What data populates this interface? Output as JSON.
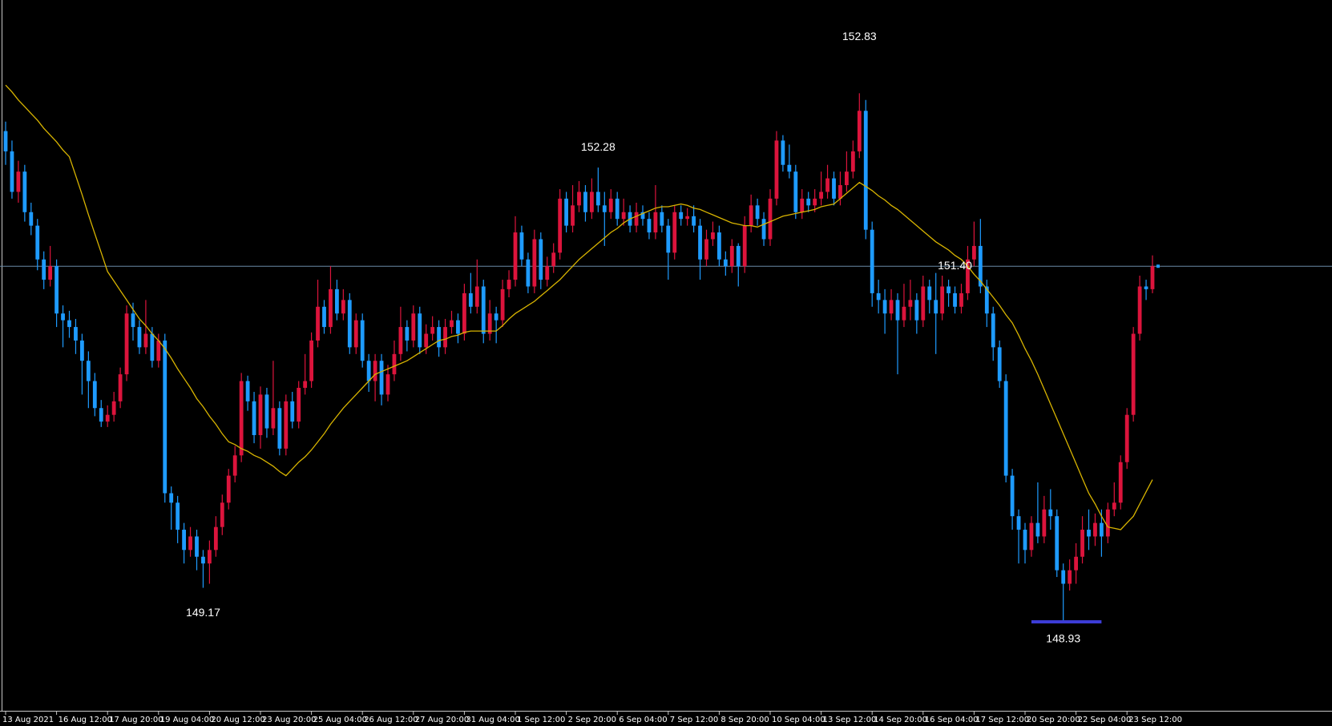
{
  "chart_data": {
    "type": "candlestick",
    "categories": [
      "13 Aug 2021",
      null,
      null,
      null,
      null,
      null,
      null,
      null,
      "16 Aug 12:00",
      null,
      null,
      null,
      null,
      null,
      null,
      null,
      "17 Aug 20:00",
      null,
      null,
      null,
      null,
      null,
      null,
      null,
      "19 Aug 04:00",
      null,
      null,
      null,
      null,
      null,
      null,
      null,
      "20 Aug 12:00",
      null,
      null,
      null,
      null,
      null,
      null,
      null,
      "23 Aug 20:00",
      null,
      null,
      null,
      null,
      null,
      null,
      null,
      "25 Aug 04:00",
      null,
      null,
      null,
      null,
      null,
      null,
      null,
      "26 Aug 12:00",
      null,
      null,
      null,
      null,
      null,
      null,
      null,
      "27 Aug 20:00",
      null,
      null,
      null,
      null,
      null,
      null,
      null,
      "31 Aug 04:00",
      null,
      null,
      null,
      null,
      null,
      null,
      null,
      "1 Sep 12:00",
      null,
      null,
      null,
      null,
      null,
      null,
      null,
      "2 Sep 20:00",
      null,
      null,
      null,
      null,
      null,
      null,
      null,
      "6 Sep 04:00",
      null,
      null,
      null,
      null,
      null,
      null,
      null,
      "7 Sep 12:00",
      null,
      null,
      null,
      null,
      null,
      null,
      null,
      "8 Sep 20:00",
      null,
      null,
      null,
      null,
      null,
      null,
      null,
      "10 Sep 04:00",
      null,
      null,
      null,
      null,
      null,
      null,
      null,
      "13 Sep 12:00",
      null,
      null,
      null,
      null,
      null,
      null,
      null,
      "14 Sep 20:00",
      null,
      null,
      null,
      null,
      null,
      null,
      null,
      "16 Sep 04:00",
      null,
      null,
      null,
      null,
      null,
      null,
      null,
      "17 Sep 12:00",
      null,
      null,
      null,
      null,
      null,
      null,
      null,
      "20 Sep 20:00",
      null,
      null,
      null,
      null,
      null,
      null,
      null,
      "22 Sep 04:00",
      null,
      null,
      null,
      null,
      null,
      null,
      null,
      "23 Sep 12:00",
      null,
      null,
      null,
      null
    ],
    "open": [
      152.55,
      152.4,
      152.1,
      152.25,
      151.95,
      151.85,
      151.6,
      151.45,
      151.55,
      151.2,
      151.15,
      151.1,
      151.0,
      150.85,
      150.7,
      150.5,
      150.4,
      150.45,
      150.55,
      150.75,
      151.2,
      151.1,
      150.95,
      151.05,
      150.85,
      151.0,
      149.87,
      149.8,
      149.6,
      149.45,
      149.55,
      149.4,
      149.35,
      149.45,
      149.62,
      149.8,
      150.0,
      150.15,
      150.7,
      150.55,
      150.3,
      150.6,
      150.35,
      150.5,
      150.2,
      150.55,
      150.4,
      150.65,
      150.7,
      151.0,
      151.25,
      151.1,
      151.38,
      151.2,
      151.3,
      150.95,
      151.15,
      150.85,
      150.7,
      150.85,
      150.6,
      150.75,
      150.9,
      151.1,
      151.0,
      151.2,
      150.95,
      151.05,
      151.1,
      150.95,
      151.1,
      151.15,
      151.05,
      151.35,
      151.25,
      151.4,
      151.05,
      151.2,
      151.15,
      151.38,
      151.45,
      151.8,
      151.6,
      151.4,
      151.75,
      151.45,
      151.55,
      151.65,
      152.05,
      151.85,
      152.0,
      152.1,
      151.95,
      152.1,
      152.0,
      151.95,
      152.05,
      151.9,
      151.95,
      151.85,
      151.95,
      151.9,
      151.8,
      151.95,
      151.85,
      151.65,
      151.95,
      151.9,
      151.92,
      151.85,
      151.6,
      151.75,
      151.8,
      151.6,
      151.55,
      151.7,
      151.55,
      151.85,
      152.0,
      151.9,
      151.75,
      152.05,
      152.48,
      152.3,
      152.25,
      151.95,
      152.05,
      152.0,
      152.05,
      152.1,
      152.2,
      152.05,
      152.15,
      152.25,
      152.4,
      152.7,
      151.82,
      151.35,
      151.3,
      151.2,
      151.3,
      151.15,
      151.25,
      151.3,
      151.15,
      151.4,
      151.3,
      151.2,
      151.4,
      151.35,
      151.25,
      151.35,
      151.6,
      151.7,
      151.4,
      151.2,
      150.95,
      150.7,
      150.0,
      149.7,
      149.6,
      149.45,
      149.65,
      149.55,
      149.75,
      149.7,
      149.3,
      149.2,
      149.3,
      149.4,
      149.6,
      149.55,
      149.65,
      149.55,
      149.75,
      149.8,
      150.1,
      150.45,
      151.05,
      151.4,
      151.38
    ],
    "high": [
      152.62,
      152.48,
      152.33,
      152.3,
      152.02,
      151.9,
      151.66,
      151.7,
      151.6,
      151.26,
      151.22,
      151.16,
      151.05,
      150.92,
      150.76,
      150.56,
      150.52,
      150.62,
      150.8,
      151.26,
      151.28,
      151.15,
      151.3,
      151.1,
      151.05,
      151.05,
      149.92,
      149.85,
      149.65,
      149.62,
      149.6,
      149.45,
      149.52,
      149.7,
      149.86,
      150.05,
      150.22,
      150.76,
      150.74,
      150.62,
      150.66,
      150.65,
      150.85,
      150.55,
      150.6,
      150.62,
      150.7,
      150.9,
      151.06,
      151.45,
      151.3,
      151.55,
      151.45,
      151.38,
      151.35,
      151.2,
      151.2,
      150.9,
      150.9,
      150.9,
      150.82,
      151.0,
      151.25,
      151.15,
      151.26,
      151.25,
      151.12,
      151.18,
      151.15,
      151.16,
      151.22,
      151.2,
      151.42,
      151.5,
      151.6,
      151.45,
      151.3,
      151.25,
      151.45,
      151.52,
      151.92,
      151.85,
      151.65,
      151.82,
      151.8,
      151.62,
      151.72,
      152.12,
      152.1,
      152.15,
      152.18,
      152.15,
      152.2,
      152.28,
      152.1,
      152.12,
      152.1,
      152.05,
      152.0,
      152.02,
      152.0,
      151.95,
      152.15,
      152.0,
      151.9,
      152.0,
      152.0,
      151.98,
      152.0,
      151.9,
      151.82,
      151.88,
      151.85,
      151.66,
      151.75,
      151.72,
      151.92,
      152.08,
      152.05,
      151.95,
      152.12,
      152.55,
      152.52,
      152.45,
      152.3,
      152.12,
      152.1,
      152.12,
      152.25,
      152.3,
      152.25,
      152.25,
      152.4,
      152.48,
      152.83,
      152.78,
      151.88,
      151.45,
      151.38,
      151.38,
      151.35,
      151.42,
      151.45,
      151.35,
      151.48,
      151.45,
      151.5,
      151.48,
      151.45,
      151.4,
      151.42,
      151.7,
      151.88,
      151.9,
      151.45,
      151.25,
      151.0,
      150.75,
      150.05,
      149.75,
      149.65,
      149.7,
      149.95,
      149.85,
      149.9,
      149.75,
      149.35,
      149.38,
      149.5,
      149.7,
      149.75,
      149.72,
      149.75,
      149.8,
      149.95,
      150.15,
      150.5,
      151.1,
      151.48,
      151.45,
      151.63
    ],
    "low": [
      152.3,
      152.05,
      152.02,
      151.88,
      151.78,
      151.52,
      151.38,
      151.4,
      151.1,
      150.95,
      151.02,
      150.9,
      150.6,
      150.5,
      150.44,
      150.36,
      150.36,
      150.4,
      150.5,
      150.7,
      151.0,
      150.9,
      150.9,
      150.8,
      150.8,
      149.8,
      149.6,
      149.5,
      149.35,
      149.4,
      149.3,
      149.17,
      149.2,
      149.4,
      149.56,
      149.75,
      149.95,
      150.1,
      150.48,
      150.24,
      150.2,
      150.28,
      150.3,
      150.15,
      150.15,
      150.35,
      150.35,
      150.6,
      150.65,
      150.95,
      151.05,
      151.05,
      151.15,
      151.15,
      150.9,
      150.9,
      150.8,
      150.62,
      150.55,
      150.52,
      150.55,
      150.7,
      150.85,
      150.92,
      150.95,
      150.9,
      150.9,
      151.0,
      150.88,
      150.9,
      151.05,
      150.98,
      151.0,
      151.2,
      151.2,
      150.98,
      151.0,
      150.98,
      151.1,
      151.32,
      151.4,
      151.55,
      151.35,
      151.35,
      151.38,
      151.4,
      151.5,
      151.6,
      151.8,
      151.8,
      151.95,
      151.88,
      151.9,
      151.95,
      151.7,
      151.9,
      151.85,
      151.85,
      151.8,
      151.8,
      151.85,
      151.75,
      151.75,
      151.8,
      151.45,
      151.6,
      151.85,
      151.85,
      151.8,
      151.45,
      151.55,
      151.7,
      151.55,
      151.48,
      151.5,
      151.4,
      151.5,
      151.8,
      151.85,
      151.7,
      151.7,
      152.0,
      152.25,
      152.2,
      151.9,
      151.9,
      151.95,
      151.95,
      152.0,
      152.05,
      152.0,
      152.0,
      152.1,
      152.2,
      152.35,
      151.75,
      151.25,
      151.2,
      151.05,
      151.15,
      150.75,
      151.1,
      151.15,
      151.05,
      151.1,
      151.2,
      150.9,
      151.15,
      151.25,
      151.2,
      151.2,
      151.3,
      151.55,
      151.35,
      151.1,
      150.85,
      150.65,
      149.95,
      149.6,
      149.35,
      149.35,
      149.4,
      149.5,
      149.5,
      149.6,
      149.25,
      148.93,
      149.15,
      149.2,
      149.35,
      149.45,
      149.48,
      149.4,
      149.5,
      149.7,
      149.75,
      150.05,
      150.4,
      151.0,
      151.3,
      151.35
    ],
    "close": [
      152.4,
      152.1,
      152.25,
      151.95,
      151.85,
      151.6,
      151.45,
      151.55,
      151.2,
      151.15,
      151.1,
      151.0,
      150.85,
      150.7,
      150.5,
      150.4,
      150.45,
      150.55,
      150.75,
      151.2,
      151.1,
      150.95,
      151.05,
      150.85,
      151.0,
      149.87,
      149.8,
      149.6,
      149.45,
      149.55,
      149.4,
      149.35,
      149.45,
      149.62,
      149.8,
      150.0,
      150.15,
      150.7,
      150.55,
      150.3,
      150.6,
      150.35,
      150.5,
      150.2,
      150.55,
      150.4,
      150.65,
      150.7,
      151.0,
      151.25,
      151.1,
      151.38,
      151.2,
      151.3,
      150.95,
      151.15,
      150.85,
      150.7,
      150.85,
      150.6,
      150.75,
      150.9,
      151.1,
      151.0,
      151.2,
      150.95,
      151.05,
      151.1,
      150.95,
      151.1,
      151.15,
      151.05,
      151.35,
      151.25,
      151.4,
      151.05,
      151.2,
      151.15,
      151.38,
      151.45,
      151.8,
      151.6,
      151.4,
      151.75,
      151.45,
      151.55,
      151.65,
      152.05,
      151.85,
      152.0,
      152.1,
      151.95,
      152.1,
      152.0,
      151.95,
      152.05,
      151.9,
      151.95,
      151.85,
      151.95,
      151.9,
      151.8,
      151.95,
      151.85,
      151.65,
      151.95,
      151.9,
      151.92,
      151.85,
      151.6,
      151.75,
      151.8,
      151.6,
      151.55,
      151.7,
      151.55,
      151.85,
      152.0,
      151.9,
      151.75,
      152.05,
      152.48,
      152.3,
      152.25,
      151.95,
      152.05,
      152.0,
      152.05,
      152.1,
      152.2,
      152.05,
      152.15,
      152.25,
      152.4,
      152.7,
      151.82,
      151.35,
      151.3,
      151.2,
      151.3,
      151.15,
      151.25,
      151.3,
      151.15,
      151.4,
      151.3,
      151.2,
      151.4,
      151.35,
      151.25,
      151.35,
      151.6,
      151.7,
      151.4,
      151.2,
      150.95,
      150.7,
      150.0,
      149.7,
      149.6,
      149.45,
      149.65,
      149.55,
      149.75,
      149.7,
      149.3,
      149.2,
      149.3,
      149.4,
      149.6,
      149.55,
      149.65,
      149.55,
      149.75,
      149.8,
      150.1,
      150.45,
      151.05,
      151.4,
      151.38,
      151.55
    ],
    "bull_color": "#dc143c",
    "bear_color": "#1e9bff",
    "ma": {
      "color": "#d8b400",
      "values": [
        152.89,
        152.84,
        152.78,
        152.73,
        152.68,
        152.63,
        152.57,
        152.52,
        152.47,
        152.41,
        152.36,
        152.22,
        152.08,
        151.93,
        151.79,
        151.65,
        151.51,
        151.44,
        151.37,
        151.3,
        151.23,
        151.16,
        151.11,
        151.05,
        151.0,
        150.94,
        150.87,
        150.79,
        150.72,
        150.65,
        150.57,
        150.51,
        150.44,
        150.38,
        150.31,
        150.25,
        150.23,
        150.2,
        150.18,
        150.15,
        150.13,
        150.1,
        150.07,
        150.03,
        150.0,
        150.05,
        150.1,
        150.14,
        150.19,
        150.25,
        150.31,
        150.38,
        150.44,
        150.5,
        150.55,
        150.6,
        150.65,
        150.7,
        150.75,
        150.77,
        150.79,
        150.81,
        150.83,
        150.85,
        150.88,
        150.91,
        150.94,
        150.97,
        151.0,
        151.01,
        151.03,
        151.04,
        151.06,
        151.07,
        151.07,
        151.07,
        151.07,
        151.07,
        151.11,
        151.16,
        151.2,
        151.23,
        151.26,
        151.29,
        151.33,
        151.37,
        151.41,
        151.45,
        151.5,
        151.55,
        151.6,
        151.64,
        151.68,
        151.72,
        151.76,
        151.8,
        151.83,
        151.87,
        151.9,
        151.92,
        151.94,
        151.96,
        151.98,
        151.99,
        151.99,
        152.0,
        152.01,
        152.0,
        151.98,
        151.97,
        151.95,
        151.93,
        151.91,
        151.89,
        151.87,
        151.86,
        151.85,
        151.85,
        151.84,
        151.86,
        151.88,
        151.9,
        151.92,
        151.93,
        151.94,
        151.95,
        151.96,
        151.97,
        151.99,
        152.0,
        152.01,
        152.05,
        152.09,
        152.13,
        152.17,
        152.14,
        152.11,
        152.07,
        152.04,
        152.0,
        151.97,
        151.93,
        151.89,
        151.85,
        151.81,
        151.77,
        151.73,
        151.7,
        151.67,
        151.63,
        151.6,
        151.55,
        151.49,
        151.44,
        151.38,
        151.32,
        151.26,
        151.19,
        151.13,
        151.04,
        150.94,
        150.85,
        150.75,
        150.64,
        150.53,
        150.42,
        150.31,
        150.2,
        150.09,
        149.98,
        149.87,
        149.79,
        149.7,
        149.62,
        149.61,
        149.6,
        149.65,
        149.7,
        149.79,
        149.88,
        149.97
      ]
    },
    "current_price": 151.55,
    "price_line_color": "#6a8aa6",
    "support_line": {
      "value": 148.93,
      "color": "#3c3cd6"
    },
    "annotations": [
      152.83,
      152.28,
      {
        "value": 151.4,
        "label": "151.40"
      },
      149.17,
      148.93
    ],
    "ylim": [
      148.26,
      153.52
    ]
  }
}
